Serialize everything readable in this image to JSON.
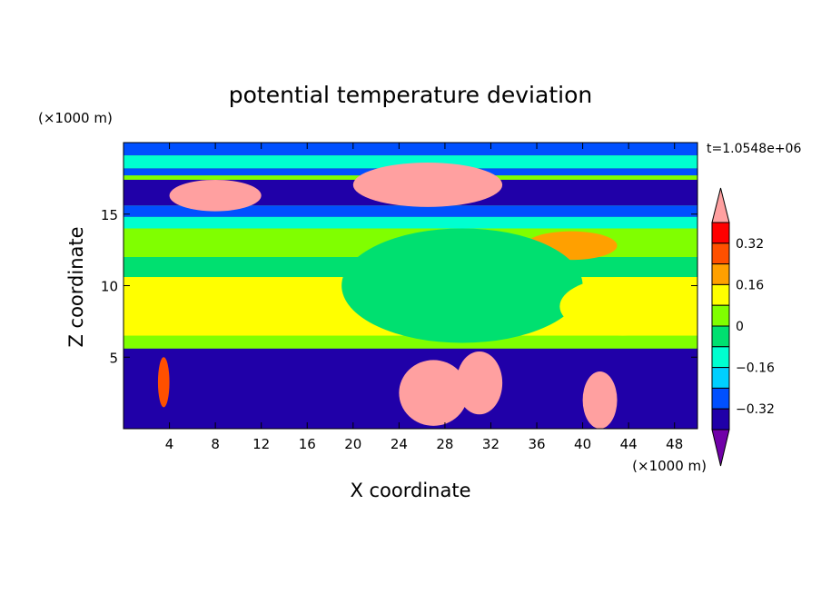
{
  "chart_data": {
    "type": "heatmap",
    "title": "potential temperature deviation",
    "xlabel": "X coordinate",
    "ylabel": "Z coordinate",
    "x_unit": "(×1000 m)",
    "y_unit": "(×1000 m)",
    "time_label": "t=1.0548e+06",
    "xlim": [
      0,
      50
    ],
    "ylim": [
      0,
      20
    ],
    "x_ticks": [
      4,
      8,
      12,
      16,
      20,
      24,
      28,
      32,
      36,
      40,
      44,
      48
    ],
    "x_tick_labels": [
      "4",
      "8",
      "12",
      "16",
      "20",
      "24",
      "28",
      "32",
      "36",
      "40",
      "44",
      "48"
    ],
    "y_ticks": [
      5,
      10,
      15
    ],
    "y_tick_labels": [
      "5",
      "10",
      "15"
    ],
    "colorbar": {
      "colors": [
        "#7000a8",
        "#2000a8",
        "#0050ff",
        "#00d0ff",
        "#00ffd0",
        "#00e070",
        "#80ff00",
        "#ffff00",
        "#ffa000",
        "#ff5000",
        "#ff0000",
        "#ffa0a0"
      ],
      "levels": [
        -0.4,
        -0.32,
        -0.24,
        -0.16,
        -0.08,
        0,
        0.08,
        0.16,
        0.24,
        0.32,
        0.4
      ],
      "labeled_levels": [
        0.32,
        0.16,
        0,
        -0.16,
        -0.32
      ],
      "labels": [
        "0.32",
        "0.16",
        "0",
        "−0.16",
        "−0.32"
      ],
      "extend": "both"
    },
    "bands": [
      {
        "z": [
          19.1,
          20.0
        ],
        "value": -0.3
      },
      {
        "z": [
          18.2,
          19.1
        ],
        "value": -0.15
      },
      {
        "z": [
          17.7,
          18.2
        ],
        "value": -0.3
      },
      {
        "z": [
          17.4,
          17.7
        ],
        "value": 0.05
      },
      {
        "z": [
          15.6,
          17.4
        ],
        "value": -0.4
      },
      {
        "z": [
          14.8,
          15.6
        ],
        "value": -0.25
      },
      {
        "z": [
          14.0,
          14.8
        ],
        "value": -0.12
      },
      {
        "z": [
          12.0,
          14.0
        ],
        "value": 0.04
      },
      {
        "z": [
          10.6,
          12.0
        ],
        "value": -0.05
      },
      {
        "z": [
          6.5,
          10.6
        ],
        "value": 0.1
      },
      {
        "z": [
          5.6,
          6.5
        ],
        "value": 0.04
      },
      {
        "z": [
          0.0,
          5.6
        ],
        "value": -0.4
      }
    ],
    "features": [
      {
        "x": [
          20,
          33
        ],
        "z": [
          15.5,
          18.6
        ],
        "value": 0.45
      },
      {
        "x": [
          4,
          12
        ],
        "z": [
          15.2,
          17.4
        ],
        "value": 0.45
      },
      {
        "x": [
          35,
          43
        ],
        "z": [
          11.8,
          13.8
        ],
        "value": 0.18
      },
      {
        "x": [
          19,
          40
        ],
        "z": [
          6.0,
          14.0
        ],
        "value": -0.06
      },
      {
        "x": [
          38,
          49
        ],
        "z": [
          6.5,
          10.6
        ],
        "value": 0.14
      },
      {
        "x": [
          29,
          33
        ],
        "z": [
          1.0,
          5.4
        ],
        "value": 0.45
      },
      {
        "x": [
          24,
          30
        ],
        "z": [
          0.2,
          4.8
        ],
        "value": 0.4
      },
      {
        "x": [
          3,
          4
        ],
        "z": [
          1.5,
          5.0
        ],
        "value": 0.3
      },
      {
        "x": [
          36,
          38
        ],
        "z": [
          1.2,
          3.5
        ],
        "value": -0.4
      },
      {
        "x": [
          40,
          43
        ],
        "z": [
          0.0,
          4.0
        ],
        "value": 0.42
      }
    ]
  }
}
